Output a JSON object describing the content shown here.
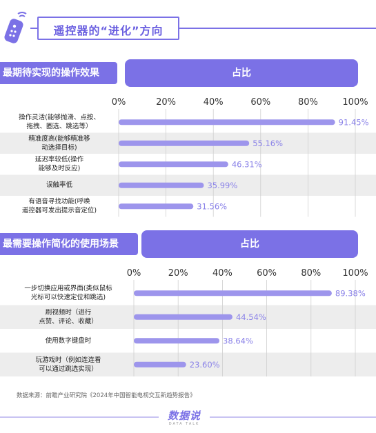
{
  "header": {
    "title": "遥控器的“进化”方向"
  },
  "chart_data": [
    {
      "type": "bar",
      "title": "最期待实现的操作效果",
      "column_header": "占比",
      "xlim": [
        0,
        100
      ],
      "ticks": [
        "0%",
        "20%",
        "40%",
        "60%",
        "80%",
        "100%"
      ],
      "categories": [
        "操作灵活(能够抛滑、点按、拖拽、圈选、跳选等）",
        "精准度高(能够精准移动选择目标)",
        "延迟率较低(操作能够及时反应)",
        "误触率低",
        "有语音寻找功能(呼唤遥控器可发出提示音定位)"
      ],
      "label_lines": [
        [
          "操作灵活(能够抛滑、点按、",
          "拖拽、圈选、跳选等）"
        ],
        [
          "精准度高(能够精准移",
          "动选择目标)"
        ],
        [
          "延迟率较低(操作",
          "能够及时反应)"
        ],
        [
          "误触率低"
        ],
        [
          "有语音寻找功能(呼唤",
          "遥控器可发出提示音定位)"
        ]
      ],
      "values": [
        91.45,
        55.16,
        46.31,
        35.99,
        31.56
      ],
      "value_labels": [
        "91.45%",
        "55.16%",
        "46.31%",
        "35.99%",
        "31.56%"
      ]
    },
    {
      "type": "bar",
      "title": "最需要操作简化的使用场景",
      "column_header": "占比",
      "xlim": [
        0,
        100
      ],
      "ticks": [
        "0%",
        "20%",
        "40%",
        "60%",
        "80%",
        "100%"
      ],
      "categories": [
        "一步切换应用或界面(类似鼠标光标可以快速定位和跳选)",
        "刷视频时（进行点赞、评论、收藏）",
        "使用数字键盘时",
        "玩游戏时（例如连连看可以通过跳选实现）"
      ],
      "label_lines": [
        [
          "一步切换应用或界面(类似鼠标",
          "光标可以快速定位和跳选)"
        ],
        [
          "刷视频时（进行",
          "点赞、评论、收藏）"
        ],
        [
          "使用数字键盘时"
        ],
        [
          "玩游戏时（例如连连看",
          "可以通过跳选实现）"
        ]
      ],
      "values": [
        89.38,
        44.54,
        38.64,
        23.6
      ],
      "value_labels": [
        "89.38%",
        "44.54%",
        "38.64%",
        "23.60%"
      ]
    }
  ],
  "colors": {
    "accent": "#7b71e6",
    "bar": "#9d95ec",
    "row_bg": "#ededed",
    "value": "#8a82e8"
  },
  "footer": {
    "source": "数据来源：前瞻产业研究院《2024年中国智能电视交互新趋势报告》",
    "logo": "数据说",
    "logo_sub": "DATA TALK"
  }
}
